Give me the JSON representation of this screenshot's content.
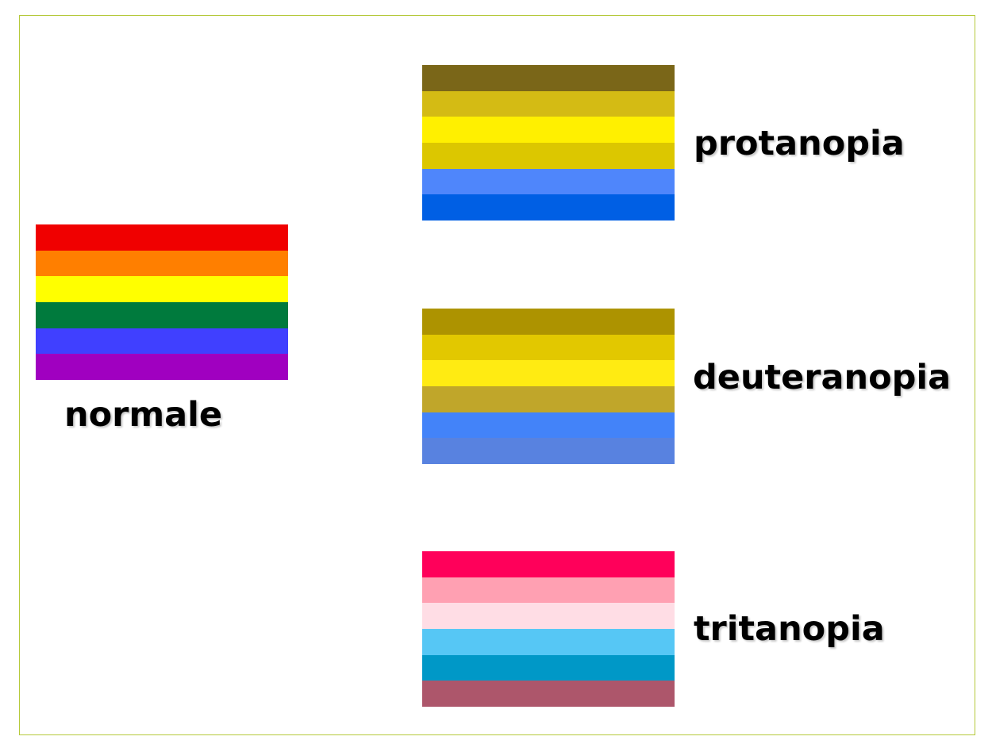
{
  "flags": {
    "normale": {
      "label": "normale",
      "stripes": [
        "#f00000",
        "#ff7f00",
        "#ffff00",
        "#007a3d",
        "#4040ff",
        "#a000c0"
      ]
    },
    "protanopia": {
      "label": "protanopia",
      "stripes": [
        "#7a6618",
        "#d4bb14",
        "#fff000",
        "#dcc700",
        "#4f86fb",
        "#005fe4"
      ]
    },
    "deuteranopia": {
      "label": "deuteranopia",
      "stripes": [
        "#ad9300",
        "#e2c800",
        "#ffeb12",
        "#c0a62a",
        "#4383f9",
        "#5882e0"
      ]
    },
    "tritanopia": {
      "label": "tritanopia",
      "stripes": [
        "#ff005a",
        "#ffa0b2",
        "#ffdde5",
        "#56c7f5",
        "#0098c7",
        "#ad566b"
      ]
    }
  },
  "frame_color": "#b5c93a"
}
